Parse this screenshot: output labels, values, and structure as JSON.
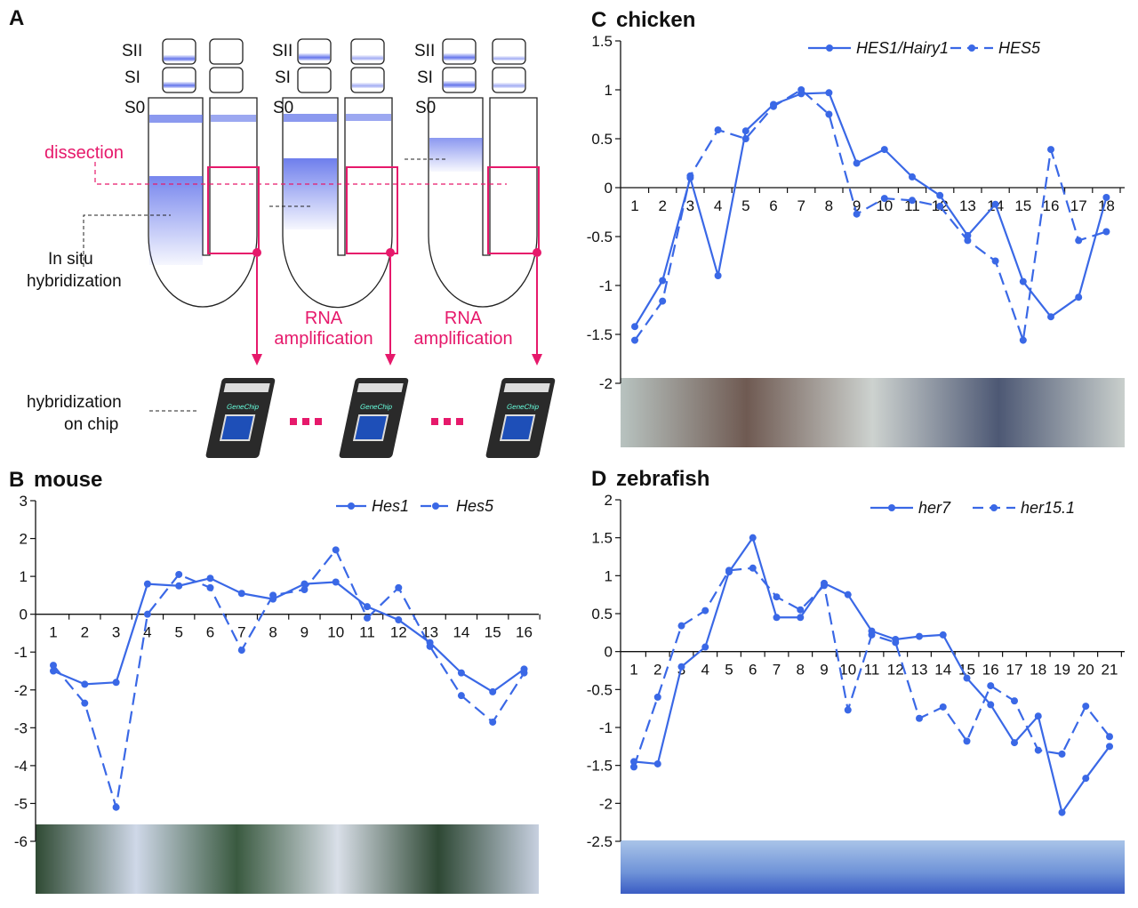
{
  "panelA": {
    "letter": "A",
    "stage_labels": [
      "SII",
      "SI",
      "S0"
    ],
    "dissection": "dissection",
    "in_situ_1": "In situ",
    "in_situ_2": "hybridization",
    "rna_1": "RNA",
    "rna_2": "amplification",
    "chip_1": "hybridization",
    "chip_2": "on chip",
    "chip_brand": "GeneChip",
    "colors": {
      "pink": "#e6196b",
      "stain": "#4a5ee8",
      "outline": "#222222"
    }
  },
  "line_color": "#3a68e6",
  "chart_data": [
    {
      "id": "B",
      "letter": "B",
      "title": "mouse",
      "type": "line",
      "x": [
        1,
        2,
        3,
        4,
        5,
        6,
        7,
        8,
        9,
        10,
        11,
        12,
        13,
        14,
        15,
        16
      ],
      "ylim": [
        -6,
        3
      ],
      "yticks": [
        3,
        2,
        1,
        0,
        -1,
        -2,
        -3,
        -4,
        -5,
        -6
      ],
      "ytick_labels": [
        "3",
        "2",
        "1",
        "0",
        "-1",
        "-2",
        "-3",
        "-4",
        "-5",
        "-6"
      ],
      "series": [
        {
          "name": "Hes1",
          "style": "solid",
          "values": [
            -1.5,
            -1.85,
            -1.8,
            0.8,
            0.75,
            0.95,
            0.55,
            0.4,
            0.8,
            0.85,
            0.2,
            -0.15,
            -0.75,
            -1.55,
            -2.05,
            -1.45
          ]
        },
        {
          "name": "Hes5",
          "style": "dashed",
          "values": [
            -1.35,
            -2.35,
            -5.1,
            0.0,
            1.05,
            0.7,
            -0.95,
            0.5,
            0.65,
            1.7,
            -0.1,
            0.7,
            -0.85,
            -2.15,
            -2.85,
            -1.55
          ]
        }
      ]
    },
    {
      "id": "C",
      "letter": "C",
      "title": "chicken",
      "type": "line",
      "x": [
        1,
        2,
        3,
        4,
        5,
        6,
        7,
        8,
        9,
        10,
        11,
        12,
        13,
        14,
        15,
        16,
        17,
        18
      ],
      "ylim": [
        -2,
        1.5
      ],
      "yticks": [
        1.5,
        1,
        0.5,
        0,
        -0.5,
        -1,
        -1.5,
        -2
      ],
      "ytick_labels": [
        "1.5",
        "1",
        "0.5",
        "0",
        "-0.5",
        "-1",
        "-1.5",
        "-2"
      ],
      "series": [
        {
          "name": "HES1/Hairy1",
          "style": "solid",
          "values": [
            -1.42,
            -0.95,
            0.1,
            -0.9,
            0.58,
            0.85,
            0.96,
            0.97,
            0.25,
            0.39,
            0.11,
            -0.08,
            -0.49,
            -0.17,
            -0.96,
            -1.32,
            -1.12,
            -0.1
          ]
        },
        {
          "name": "HES5",
          "style": "dashed",
          "values": [
            -1.56,
            -1.16,
            0.12,
            0.59,
            0.5,
            0.83,
            1.0,
            0.75,
            -0.27,
            -0.11,
            -0.13,
            -0.19,
            -0.54,
            -0.75,
            -1.56,
            0.39,
            -0.54,
            -0.45
          ]
        }
      ]
    },
    {
      "id": "D",
      "letter": "D",
      "title": "zebrafish",
      "type": "line",
      "x": [
        1,
        2,
        3,
        4,
        5,
        6,
        7,
        8,
        9,
        10,
        11,
        12,
        13,
        14,
        15,
        16,
        17,
        18,
        19,
        20,
        21
      ],
      "ylim": [
        -2.5,
        2
      ],
      "yticks": [
        2,
        1.5,
        1,
        0.5,
        0,
        -0.5,
        -1,
        -1.5,
        -2,
        -2.5
      ],
      "ytick_labels": [
        "2",
        "1.5",
        "1",
        "0.5",
        "0",
        "-0.5",
        "-1",
        "-1.5",
        "-2",
        "-2.5"
      ],
      "series": [
        {
          "name": "her7",
          "style": "solid",
          "values": [
            -1.45,
            -1.48,
            -0.2,
            0.06,
            1.05,
            1.5,
            0.45,
            0.45,
            0.9,
            0.75,
            0.27,
            0.16,
            0.2,
            0.22,
            -0.35,
            -0.7,
            -1.2,
            -0.85,
            -2.12,
            -1.67,
            -1.25
          ]
        },
        {
          "name": "her15.1",
          "style": "dashed",
          "values": [
            -1.52,
            -0.6,
            0.34,
            0.54,
            1.07,
            1.1,
            0.72,
            0.55,
            0.87,
            -0.77,
            0.22,
            0.12,
            -0.88,
            -0.73,
            -1.18,
            -0.45,
            -0.65,
            -1.3,
            -1.35,
            -0.72,
            -1.12
          ]
        }
      ]
    }
  ]
}
